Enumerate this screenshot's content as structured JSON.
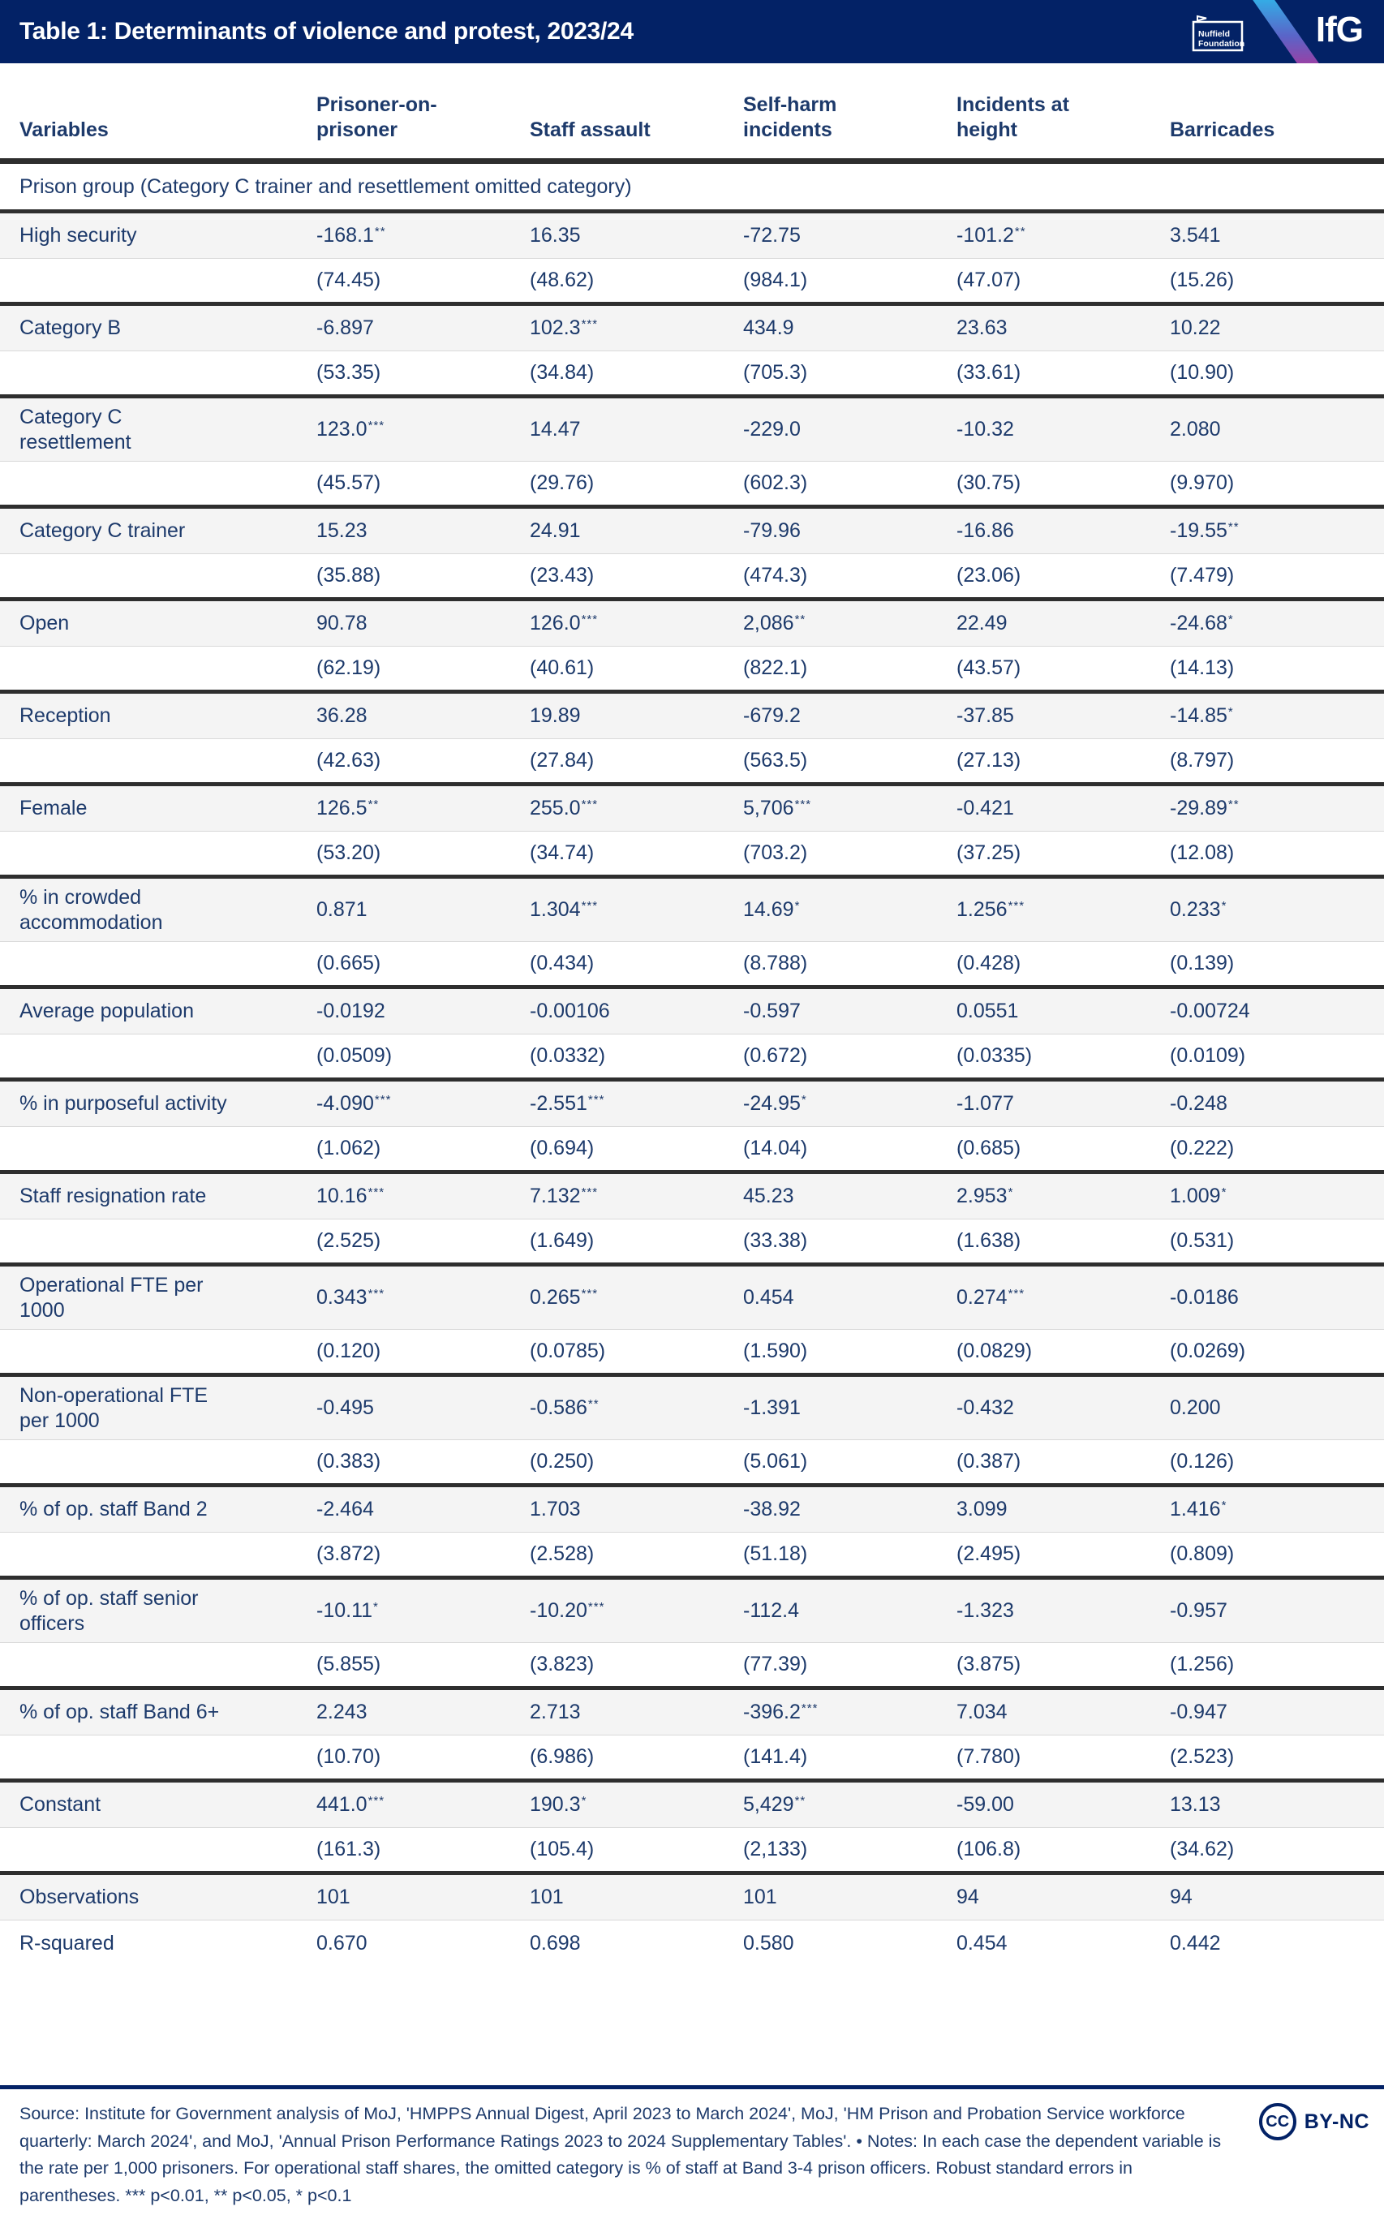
{
  "header": {
    "title": "Table 1: Determinants of violence and protest, 2023/24",
    "nuffield_logo_line1": "Nuffield",
    "nuffield_logo_line2": "Foundation",
    "ifg_logo": "IfG"
  },
  "colors": {
    "navy": "#032266",
    "table_text": "#1d3a6b",
    "row_shade": "#f4f4f4",
    "rule_dark": "#2e2e2e",
    "rule_light": "#d9d9d9",
    "stripe_top": "#2fb5e9",
    "stripe_bottom": "#a43a9e"
  },
  "chart_data": {
    "type": "table",
    "title": "Table 1: Determinants of violence and protest, 2023/24",
    "columns": [
      "Variables",
      "Prisoner-on-prisoner",
      "Staff assault",
      "Self-harm incidents",
      "Incidents at height",
      "Barricades"
    ],
    "section_header": "Prison group (Category C trainer and resettlement omitted category)",
    "rows": [
      {
        "label": "High security",
        "coef": [
          "-168.1**",
          "16.35",
          "-72.75",
          "-101.2**",
          "3.541"
        ],
        "se": [
          "(74.45)",
          "(48.62)",
          "(984.1)",
          "(47.07)",
          "(15.26)"
        ]
      },
      {
        "label": "Category B",
        "coef": [
          "-6.897",
          "102.3***",
          "434.9",
          "23.63",
          "10.22"
        ],
        "se": [
          "(53.35)",
          "(34.84)",
          "(705.3)",
          "(33.61)",
          "(10.90)"
        ]
      },
      {
        "label": "Category C resettlement",
        "coef": [
          "123.0***",
          "14.47",
          "-229.0",
          "-10.32",
          "2.080"
        ],
        "se": [
          "(45.57)",
          "(29.76)",
          "(602.3)",
          "(30.75)",
          "(9.970)"
        ]
      },
      {
        "label": "Category C trainer",
        "coef": [
          "15.23",
          "24.91",
          "-79.96",
          "-16.86",
          "-19.55**"
        ],
        "se": [
          "(35.88)",
          "(23.43)",
          "(474.3)",
          "(23.06)",
          "(7.479)"
        ]
      },
      {
        "label": "Open",
        "coef": [
          "90.78",
          "126.0***",
          "2,086**",
          "22.49",
          "-24.68*"
        ],
        "se": [
          "(62.19)",
          "(40.61)",
          "(822.1)",
          "(43.57)",
          "(14.13)"
        ]
      },
      {
        "label": "Reception",
        "coef": [
          "36.28",
          "19.89",
          "-679.2",
          "-37.85",
          "-14.85*"
        ],
        "se": [
          "(42.63)",
          "(27.84)",
          "(563.5)",
          "(27.13)",
          "(8.797)"
        ]
      },
      {
        "label": "Female",
        "coef": [
          "126.5**",
          "255.0***",
          "5,706***",
          "-0.421",
          "-29.89**"
        ],
        "se": [
          "(53.20)",
          "(34.74)",
          "(703.2)",
          "(37.25)",
          "(12.08)"
        ]
      },
      {
        "label": "% in crowded accommodation",
        "coef": [
          "0.871",
          "1.304***",
          "14.69*",
          "1.256***",
          "0.233*"
        ],
        "se": [
          "(0.665)",
          "(0.434)",
          "(8.788)",
          "(0.428)",
          "(0.139)"
        ]
      },
      {
        "label": "Average population",
        "coef": [
          "-0.0192",
          "-0.00106",
          "-0.597",
          "0.0551",
          "-0.00724"
        ],
        "se": [
          "(0.0509)",
          "(0.0332)",
          "(0.672)",
          "(0.0335)",
          "(0.0109)"
        ]
      },
      {
        "label": "% in purposeful activity",
        "coef": [
          "-4.090***",
          "-2.551***",
          "-24.95*",
          "-1.077",
          "-0.248"
        ],
        "se": [
          "(1.062)",
          "(0.694)",
          "(14.04)",
          "(0.685)",
          "(0.222)"
        ]
      },
      {
        "label": "Staff resignation rate",
        "coef": [
          "10.16***",
          "7.132***",
          "45.23",
          "2.953*",
          "1.009*"
        ],
        "se": [
          "(2.525)",
          "(1.649)",
          "(33.38)",
          "(1.638)",
          "(0.531)"
        ]
      },
      {
        "label": "Operational FTE per 1000",
        "coef": [
          "0.343***",
          "0.265***",
          "0.454",
          "0.274***",
          "-0.0186"
        ],
        "se": [
          "(0.120)",
          "(0.0785)",
          "(1.590)",
          "(0.0829)",
          "(0.0269)"
        ]
      },
      {
        "label": "Non-operational FTE per 1000",
        "coef": [
          "-0.495",
          "-0.586**",
          "-1.391",
          "-0.432",
          "0.200"
        ],
        "se": [
          "(0.383)",
          "(0.250)",
          "(5.061)",
          "(0.387)",
          "(0.126)"
        ]
      },
      {
        "label": "% of op. staff Band 2",
        "coef": [
          "-2.464",
          "1.703",
          "-38.92",
          "3.099",
          "1.416*"
        ],
        "se": [
          "(3.872)",
          "(2.528)",
          "(51.18)",
          "(2.495)",
          "(0.809)"
        ]
      },
      {
        "label": "% of op. staff senior officers",
        "coef": [
          "-10.11*",
          "-10.20***",
          "-112.4",
          "-1.323",
          "-0.957"
        ],
        "se": [
          "(5.855)",
          "(3.823)",
          "(77.39)",
          "(3.875)",
          "(1.256)"
        ]
      },
      {
        "label": "% of op. staff Band 6+",
        "coef": [
          "2.243",
          "2.713",
          "-396.2***",
          "7.034",
          "-0.947"
        ],
        "se": [
          "(10.70)",
          "(6.986)",
          "(141.4)",
          "(7.780)",
          "(2.523)"
        ]
      },
      {
        "label": "Constant",
        "coef": [
          "441.0***",
          "190.3*",
          "5,429**",
          "-59.00",
          "13.13"
        ],
        "se": [
          "(161.3)",
          "(105.4)",
          "(2,133)",
          "(106.8)",
          "(34.62)"
        ]
      }
    ],
    "summary_rows": [
      {
        "label": "Observations",
        "values": [
          "101",
          "101",
          "101",
          "94",
          "94"
        ]
      },
      {
        "label": "R-squared",
        "values": [
          "0.670",
          "0.698",
          "0.580",
          "0.454",
          "0.442"
        ]
      }
    ]
  },
  "footer": {
    "source": "Source: Institute for Government analysis of MoJ, 'HMPPS Annual Digest, April 2023 to March 2024', MoJ, 'HM Prison and Probation Service workforce quarterly: March 2024', and MoJ, 'Annual Prison Performance Ratings 2023 to 2024 Supplementary Tables'.",
    "separator": "•",
    "notes": "Notes: In each case the dependent variable is the rate per 1,000 prisoners. For operational staff shares, the omitted category is % of staff at Band 3-4 prison officers. Robust standard errors in parentheses. *** p<0.01, ** p<0.05, * p<0.1",
    "license_icon": "CC",
    "license": "BY-NC"
  }
}
